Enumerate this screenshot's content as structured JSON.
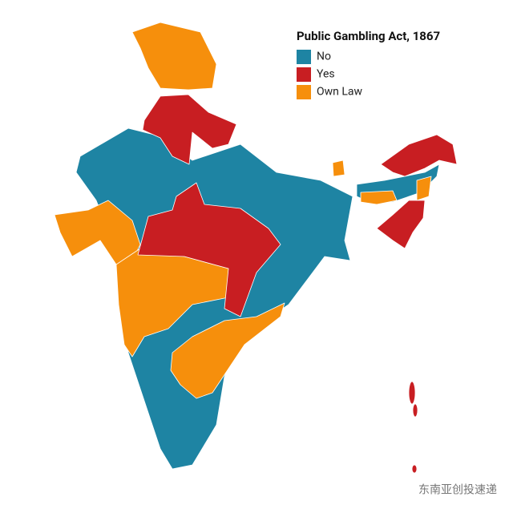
{
  "title": "Public Gambling Act, 1867",
  "legend": [
    {
      "label": "No",
      "color": "#1e84a3"
    },
    {
      "label": "Yes",
      "color": "#c81e22"
    },
    {
      "label": "Own Law",
      "color": "#f68f0c"
    }
  ],
  "watermark": "东南亚创投速递"
}
